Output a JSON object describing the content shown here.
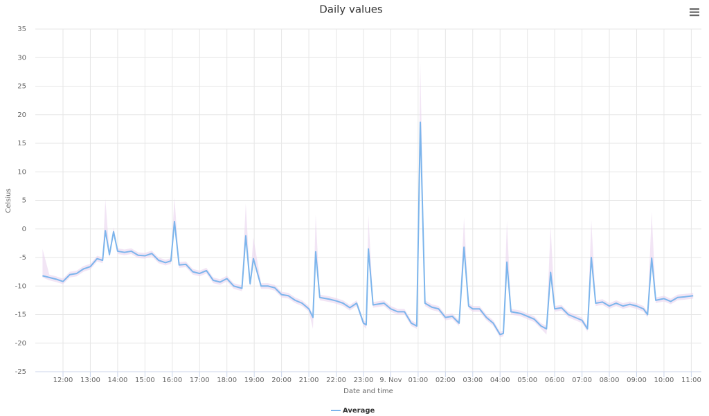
{
  "chart_data": {
    "type": "line",
    "title": "Daily values",
    "x_label": "Date and time",
    "y_label": "Celsius",
    "grid": true,
    "legend": "bottom",
    "xlim": [
      10.986,
      35.37
    ],
    "ylim": [
      -25,
      35
    ],
    "yticks": [
      -25,
      -20,
      -15,
      -10,
      -5,
      0,
      5,
      10,
      15,
      20,
      25,
      30,
      35
    ],
    "xticks": [
      {
        "value": 12,
        "label": "12:00"
      },
      {
        "value": 13,
        "label": "13:00"
      },
      {
        "value": 14,
        "label": "14:00"
      },
      {
        "value": 15,
        "label": "15:00"
      },
      {
        "value": 16,
        "label": "16:00"
      },
      {
        "value": 17,
        "label": "17:00"
      },
      {
        "value": 18,
        "label": "18:00"
      },
      {
        "value": 19,
        "label": "19:00"
      },
      {
        "value": 20,
        "label": "20:00"
      },
      {
        "value": 21,
        "label": "21:00"
      },
      {
        "value": 22,
        "label": "22:00"
      },
      {
        "value": 23,
        "label": "23:00"
      },
      {
        "value": 24,
        "label": "9. Nov"
      },
      {
        "value": 25,
        "label": "01:00"
      },
      {
        "value": 26,
        "label": "02:00"
      },
      {
        "value": 27,
        "label": "03:00"
      },
      {
        "value": 28,
        "label": "04:00"
      },
      {
        "value": 29,
        "label": "05:00"
      },
      {
        "value": 30,
        "label": "06:00"
      },
      {
        "value": 31,
        "label": "07:00"
      },
      {
        "value": 32,
        "label": "08:00"
      },
      {
        "value": 33,
        "label": "09:00"
      },
      {
        "value": 34,
        "label": "10:00"
      },
      {
        "value": 35,
        "label": "11:00"
      }
    ],
    "x": [
      11.25,
      11.5,
      11.75,
      12.0,
      12.25,
      12.5,
      12.75,
      13.0,
      13.25,
      13.45,
      13.55,
      13.7,
      13.85,
      14.0,
      14.25,
      14.5,
      14.75,
      15.0,
      15.25,
      15.5,
      15.75,
      15.95,
      16.08,
      16.25,
      16.5,
      16.75,
      17.0,
      17.25,
      17.5,
      17.75,
      18.0,
      18.25,
      18.55,
      18.69,
      18.85,
      18.97,
      19.25,
      19.5,
      19.75,
      20.0,
      20.25,
      20.5,
      20.75,
      21.0,
      21.15,
      21.25,
      21.4,
      21.75,
      22.0,
      22.25,
      22.5,
      22.75,
      23.0,
      23.1,
      23.18,
      23.35,
      23.75,
      24.0,
      24.25,
      24.5,
      24.75,
      24.95,
      25.08,
      25.25,
      25.5,
      25.75,
      26.0,
      26.25,
      26.5,
      26.68,
      26.85,
      27.0,
      27.25,
      27.5,
      27.75,
      28.0,
      28.12,
      28.25,
      28.4,
      28.75,
      29.0,
      29.25,
      29.5,
      29.7,
      29.85,
      30.0,
      30.25,
      30.5,
      30.75,
      31.0,
      31.2,
      31.34,
      31.5,
      31.75,
      32.0,
      32.25,
      32.5,
      32.75,
      33.0,
      33.25,
      33.4,
      33.55,
      33.7,
      34.0,
      34.25,
      34.5,
      34.75,
      35.07
    ],
    "series": [
      {
        "name": "Average",
        "color": "#7cb5ec",
        "values": [
          -8.2,
          -8.5,
          -8.8,
          -9.2,
          -8.0,
          -7.8,
          -7.0,
          -6.6,
          -5.2,
          -5.5,
          -0.3,
          -4.5,
          -0.5,
          -3.9,
          -4.1,
          -3.9,
          -4.6,
          -4.7,
          -4.3,
          -5.5,
          -5.9,
          -5.6,
          1.3,
          -6.3,
          -6.2,
          -7.5,
          -7.8,
          -7.3,
          -9.0,
          -9.3,
          -8.7,
          -10.0,
          -10.4,
          -1.2,
          -9.6,
          -5.2,
          -10.0,
          -10.0,
          -10.3,
          -11.5,
          -11.7,
          -12.5,
          -13.0,
          -14.0,
          -15.5,
          -4.0,
          -12.0,
          -12.3,
          -12.6,
          -13.0,
          -13.8,
          -13.0,
          -16.5,
          -16.8,
          -3.5,
          -13.3,
          -13.0,
          -14.0,
          -14.5,
          -14.5,
          -16.5,
          -17.0,
          18.7,
          -13.0,
          -13.7,
          -14.0,
          -15.5,
          -15.3,
          -16.5,
          -3.2,
          -13.5,
          -14.0,
          -14.0,
          -15.5,
          -16.5,
          -18.5,
          -18.3,
          -5.8,
          -14.5,
          -14.8,
          -15.3,
          -15.8,
          -17.0,
          -17.5,
          -7.6,
          -14.0,
          -13.8,
          -15.0,
          -15.5,
          -16.0,
          -17.5,
          -5.0,
          -13.0,
          -12.8,
          -13.5,
          -13.0,
          -13.5,
          -13.2,
          -13.5,
          -14.0,
          -15.0,
          -5.1,
          -12.5,
          -12.2,
          -12.7,
          -12.0,
          -11.9,
          -11.7
        ]
      }
    ],
    "range": {
      "color": "#e9d3ee",
      "low": [
        -8.5,
        -9.0,
        -9.3,
        -9.7,
        -8.5,
        -8.3,
        -7.5,
        -7.1,
        -5.7,
        -6.0,
        -0.8,
        -5.0,
        -1.0,
        -4.4,
        -4.6,
        -4.4,
        -5.1,
        -5.2,
        -4.8,
        -6.0,
        -6.4,
        -6.1,
        0.8,
        -6.8,
        -6.7,
        -8.0,
        -8.3,
        -7.8,
        -9.5,
        -9.8,
        -9.2,
        -10.5,
        -10.9,
        -1.7,
        -10.1,
        -5.7,
        -10.5,
        -10.5,
        -10.8,
        -12.0,
        -12.2,
        -13.0,
        -13.5,
        -14.5,
        -17.5,
        -4.5,
        -12.5,
        -12.8,
        -13.1,
        -13.5,
        -14.3,
        -13.5,
        -17.0,
        -17.5,
        -4.0,
        -13.8,
        -13.5,
        -14.5,
        -15.0,
        -15.0,
        -17.0,
        -17.5,
        18.2,
        -13.5,
        -14.2,
        -14.5,
        -16.0,
        -15.8,
        -17.0,
        -3.7,
        -14.0,
        -14.5,
        -14.5,
        -16.0,
        -17.0,
        -19.0,
        -18.8,
        -6.3,
        -15.0,
        -15.3,
        -15.8,
        -16.3,
        -17.5,
        -18.5,
        -8.1,
        -14.5,
        -14.3,
        -15.5,
        -16.0,
        -16.5,
        -18.0,
        -5.5,
        -13.5,
        -13.3,
        -14.0,
        -13.5,
        -14.0,
        -13.7,
        -14.0,
        -14.5,
        -15.5,
        -5.6,
        -13.0,
        -12.7,
        -13.2,
        -12.5,
        -12.4,
        -12.2
      ],
      "high": [
        -3.5,
        -8.0,
        -8.3,
        -8.7,
        -7.5,
        -7.3,
        -6.5,
        -6.1,
        -4.7,
        -5.0,
        5.2,
        -4.0,
        0.3,
        -3.4,
        -3.6,
        -3.4,
        -4.1,
        -4.2,
        -3.8,
        -5.0,
        -5.4,
        -5.1,
        5.5,
        -5.8,
        -5.7,
        -7.0,
        -7.3,
        -6.8,
        -8.5,
        -8.8,
        -8.2,
        -9.5,
        -9.9,
        4.5,
        -9.1,
        -1.5,
        -9.5,
        -9.5,
        -9.8,
        -11.0,
        -11.2,
        -12.0,
        -12.5,
        -13.5,
        -15.0,
        2.5,
        -11.5,
        -11.8,
        -12.1,
        -12.5,
        -13.3,
        -12.5,
        -16.0,
        -16.3,
        2.5,
        -12.8,
        -12.5,
        -13.5,
        -14.0,
        -14.0,
        -16.0,
        -16.5,
        29,
        -12.5,
        -13.2,
        -13.5,
        -15.0,
        -14.8,
        -16.0,
        2,
        -13.0,
        -13.5,
        -13.5,
        -15.0,
        -16.0,
        -18.0,
        -17.8,
        1.5,
        -14.0,
        -14.3,
        -14.8,
        -15.3,
        -16.5,
        -17.0,
        0.5,
        -13.5,
        -13.3,
        -14.5,
        -15.0,
        -15.5,
        -17.0,
        1.5,
        -12.5,
        -12.3,
        -13.0,
        -12.5,
        -13.0,
        -12.7,
        -13.0,
        -13.5,
        -14.5,
        3,
        -12.0,
        -11.7,
        -12.2,
        -11.5,
        -11.4,
        -11.2
      ]
    }
  }
}
